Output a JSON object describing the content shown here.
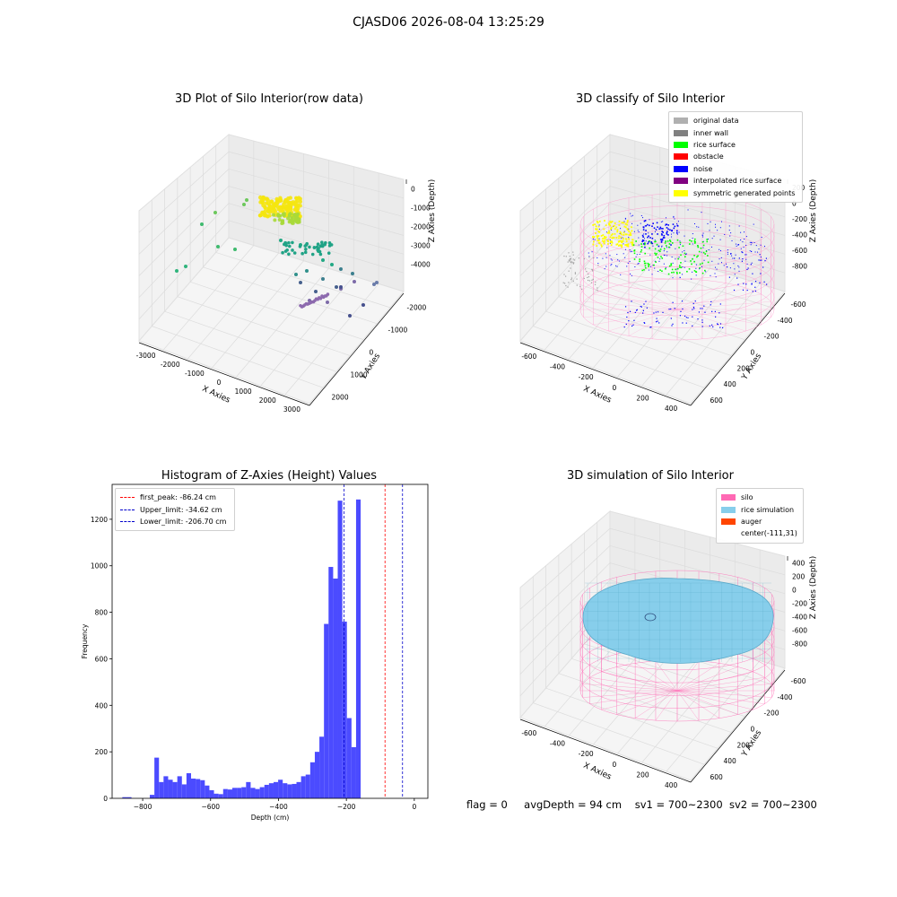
{
  "page": {
    "suptitle": "CJASD06 2026-08-04 13:25:29"
  },
  "panels": {
    "raw": {
      "title": "3D Plot of Silo Interior(row data)",
      "xlabel": "X Axies",
      "ylabel": "Y Axies",
      "zlabel": "Z Axies (Depth)",
      "xticks": [
        "-3000",
        "-2000",
        "-1000",
        "0",
        "1000",
        "2000",
        "3000"
      ],
      "yticks": [
        "-2000",
        "-1000",
        "0",
        "1000",
        "2000"
      ],
      "zticks": [
        "0",
        "-1000",
        "-2000",
        "-3000",
        "-4000"
      ]
    },
    "classify": {
      "title": "3D classify of Silo Interior",
      "xlabel": "X Axies",
      "ylabel": "Y Axies",
      "zlabel": "Z Axies (Depth)",
      "xticks": [
        "-600",
        "-400",
        "-200",
        "0",
        "200",
        "400"
      ],
      "yticks": [
        "-600",
        "-400",
        "-200",
        "0",
        "200",
        "400",
        "600"
      ],
      "zticks": [
        "200",
        "0",
        "-200",
        "-400",
        "-600",
        "-800"
      ],
      "legend": [
        {
          "label": "original data",
          "color": "#b0b0b0"
        },
        {
          "label": "inner wall",
          "color": "#808080"
        },
        {
          "label": "rice surface",
          "color": "#00ff00"
        },
        {
          "label": "obstacle",
          "color": "#ff0000"
        },
        {
          "label": "noise",
          "color": "#0000ff"
        },
        {
          "label": "interpolated rice surface",
          "color": "#800080"
        },
        {
          "label": "symmetric generated points",
          "color": "#ffff00"
        }
      ]
    },
    "simulation": {
      "title": "3D simulation of Silo Interior",
      "xlabel": "X Axies",
      "ylabel": "Y Axies",
      "zlabel": "Z Axies (Depth)",
      "xticks": [
        "-600",
        "-400",
        "-200",
        "0",
        "200",
        "400"
      ],
      "yticks": [
        "-600",
        "-400",
        "-200",
        "0",
        "200",
        "400",
        "600"
      ],
      "zticks": [
        "400",
        "200",
        "0",
        "-200",
        "-400",
        "-600",
        "-800"
      ],
      "legend": [
        {
          "label": "silo",
          "color": "#ff69b4"
        },
        {
          "label": "rice simulation",
          "color": "#87ceeb"
        },
        {
          "label": "auger",
          "color": "#ff4500"
        },
        {
          "label": "center(-111,31)",
          "color": ""
        }
      ]
    }
  },
  "chart_data": {
    "type": "bar",
    "title": "Histogram of Z-Axies (Height) Values",
    "xlabel": "Depth (cm)",
    "ylabel": "Frequency",
    "xlim": [
      -890,
      40
    ],
    "ylim": [
      0,
      1350
    ],
    "xticks": [
      -800,
      -600,
      -400,
      -200,
      0
    ],
    "yticks": [
      0,
      200,
      400,
      600,
      800,
      1000,
      1200
    ],
    "bin_width": 13.5,
    "bins": [
      [
        -860,
        5
      ],
      [
        -846.5,
        5
      ],
      [
        -833,
        0
      ],
      [
        -819.5,
        0
      ],
      [
        -806,
        0
      ],
      [
        -792.5,
        0
      ],
      [
        -779,
        15
      ],
      [
        -765.5,
        175
      ],
      [
        -752,
        70
      ],
      [
        -738.5,
        95
      ],
      [
        -725,
        80
      ],
      [
        -711.5,
        70
      ],
      [
        -698,
        95
      ],
      [
        -684.5,
        60
      ],
      [
        -671,
        108
      ],
      [
        -657.5,
        85
      ],
      [
        -644,
        83
      ],
      [
        -630.5,
        78
      ],
      [
        -617,
        55
      ],
      [
        -603.5,
        35
      ],
      [
        -590,
        20
      ],
      [
        -576.5,
        18
      ],
      [
        -563,
        40
      ],
      [
        -549.5,
        38
      ],
      [
        -536,
        45
      ],
      [
        -522.5,
        45
      ],
      [
        -509,
        48
      ],
      [
        -495.5,
        70
      ],
      [
        -482,
        45
      ],
      [
        -468.5,
        40
      ],
      [
        -455,
        48
      ],
      [
        -441.5,
        58
      ],
      [
        -428,
        65
      ],
      [
        -414.5,
        70
      ],
      [
        -401,
        80
      ],
      [
        -387.5,
        65
      ],
      [
        -374,
        60
      ],
      [
        -360.5,
        62
      ],
      [
        -347,
        70
      ],
      [
        -333.5,
        95
      ],
      [
        -320,
        102
      ],
      [
        -306.5,
        155
      ],
      [
        -293,
        200
      ],
      [
        -279.5,
        265
      ],
      [
        -266,
        750
      ],
      [
        -252.5,
        995
      ],
      [
        -239,
        945
      ],
      [
        -225.5,
        1280
      ],
      [
        -212,
        760
      ],
      [
        -198.5,
        345
      ],
      [
        -185,
        220
      ],
      [
        -171.5,
        1285
      ]
    ],
    "vlines": [
      {
        "label": "first_peak: -86.24 cm",
        "x": -86.24,
        "color": "#ff0000"
      },
      {
        "label": "Upper_limit: -34.62 cm",
        "x": -34.62,
        "color": "#0000cc"
      },
      {
        "label": "Lower_limit: -206.70 cm",
        "x": -206.7,
        "color": "#0000cc"
      }
    ],
    "bar_color": "#4b4bff"
  },
  "footer": {
    "flag": "flag = 0",
    "avg_depth": "avgDepth = 94 cm",
    "sv1": "sv1 = 700~2300",
    "sv2": "sv2 = 700~2300"
  }
}
